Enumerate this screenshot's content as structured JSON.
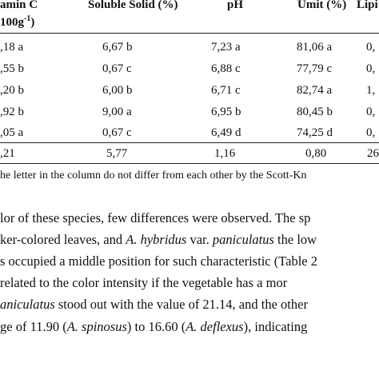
{
  "table": {
    "headers": {
      "vitc_line1": "amin C",
      "vitc_line2_pre": "100g",
      "vitc_line2_sup": "-1",
      "vitc_line2_post": ")",
      "soluble": "Soluble Solid (%)",
      "ph": "pH",
      "umit": "Umit (%)",
      "lipid": "Lipi"
    },
    "rows": [
      {
        "vitc": ",18 a",
        "soluble": "6,67 b",
        "ph": "7,23 a",
        "umit": "81,06 a",
        "lipid": "0,"
      },
      {
        "vitc": ",55 b",
        "soluble": "0,67 c",
        "ph": "6,88 c",
        "umit": "77,79 c",
        "lipid": "0,"
      },
      {
        "vitc": ",20 b",
        "soluble": "6,00 b",
        "ph": "6,71 c",
        "umit": "82,74 a",
        "lipid": "1,"
      },
      {
        "vitc": ",92 b",
        "soluble": "9,00 a",
        "ph": "6,95 b",
        "umit": "80,45 b",
        "lipid": "0,"
      },
      {
        "vitc": ",05 a",
        "soluble": "0,67 c",
        "ph": "6,49 d",
        "umit": "74,25 d",
        "lipid": "0,"
      }
    ],
    "cv": {
      "vitc": ",21",
      "soluble": "5,77",
      "ph": "1,16",
      "umit": "0,80",
      "lipid": "26"
    }
  },
  "footnote": "he letter in the column do not differ from each other by the Scott-Kn",
  "paragraph": {
    "l1": "lor of these species, few differences were observed. The sp",
    "l2_pre": "ker-colored leaves, and ",
    "l2_sp": "A. hybridus",
    "l2_mid": " var. ",
    "l2_var": "paniculatus",
    "l2_post": " the low",
    "l3": "s occupied a middle position for such characteristic (Table 2",
    "l4": "related to the color intensity if the vegetable has a mor",
    "l5_var": "aniculatus",
    "l5_post": " stood out with the value of 21.14, and the other",
    "l6_pre": "ge of 11.90 (",
    "l6_sp1": "A. spinosus",
    "l6_mid": ") to 16.60 (",
    "l6_sp2": "A. deflexus",
    "l6_post": "), indicating"
  }
}
